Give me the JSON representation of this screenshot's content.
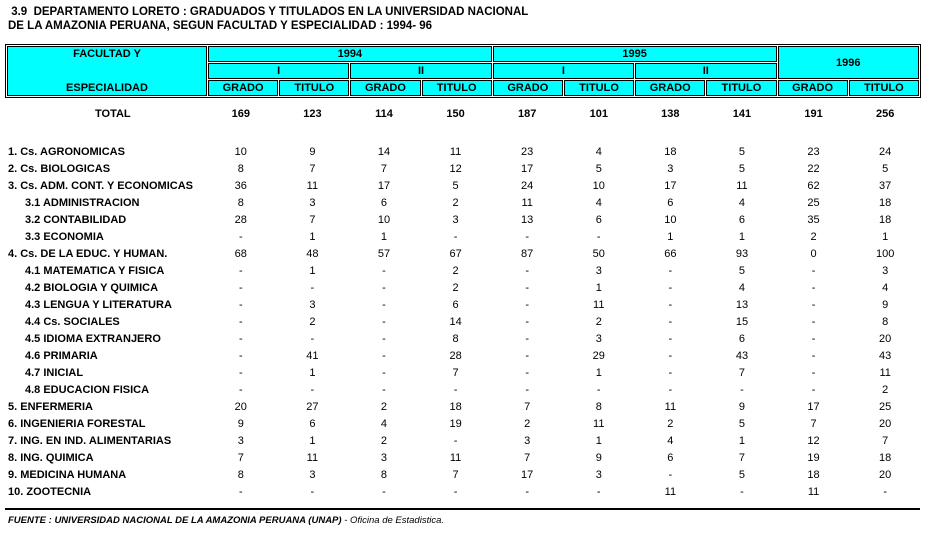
{
  "title": {
    "line1": " 3.9  DEPARTAMENTO LORETO : GRADUADOS Y TITULADOS EN LA UNIVERSIDAD NACIONAL",
    "line2": "DE LA AMAZONIA PERUANA, SEGUN FACULTAD Y ESPECIALIDAD : 1994- 96"
  },
  "colors": {
    "header_bg": "#00FFFF",
    "border": "#000000"
  },
  "table": {
    "header": {
      "col1_top": "FACULTAD  Y",
      "col1_bottom": "ESPECIALIDAD",
      "year_1994": "1994",
      "year_1995": "1995",
      "year_1996": "1996",
      "sem_I": "I",
      "sem_II": "II",
      "grado": "GRADO",
      "titulo": "TITULO"
    },
    "column_keys": [
      "1994-I-GRADO",
      "1994-I-TITULO",
      "1994-II-GRADO",
      "1994-II-TITULO",
      "1995-I-GRADO",
      "1995-I-TITULO",
      "1995-II-GRADO",
      "1995-II-TITULO",
      "1996-GRADO",
      "1996-TITULO"
    ],
    "total_row": {
      "label": "TOTAL",
      "values": [
        "169",
        "123",
        "114",
        "150",
        "187",
        "101",
        "138",
        "141",
        "191",
        "256"
      ]
    },
    "rows": [
      {
        "label": "1. Cs. AGRONOMICAS",
        "indent": false,
        "values": [
          "10",
          "9",
          "14",
          "11",
          "23",
          "4",
          "18",
          "5",
          "23",
          "24"
        ]
      },
      {
        "label": "2. Cs. BIOLOGICAS",
        "indent": false,
        "values": [
          "8",
          "7",
          "7",
          "12",
          "17",
          "5",
          "3",
          "5",
          "22",
          "5"
        ]
      },
      {
        "label": "3. Cs. ADM. CONT. Y ECONOMICAS",
        "indent": false,
        "values": [
          "36",
          "11",
          "17",
          "5",
          "24",
          "10",
          "17",
          "11",
          "62",
          "37"
        ]
      },
      {
        "label": "3.1 ADMINISTRACION",
        "indent": true,
        "values": [
          "8",
          "3",
          "6",
          "2",
          "11",
          "4",
          "6",
          "4",
          "25",
          "18"
        ]
      },
      {
        "label": "3.2 CONTABILIDAD",
        "indent": true,
        "values": [
          "28",
          "7",
          "10",
          "3",
          "13",
          "6",
          "10",
          "6",
          "35",
          "18"
        ]
      },
      {
        "label": "3.3 ECONOMIA",
        "indent": true,
        "values": [
          "-",
          "1",
          "1",
          "-",
          "-",
          "-",
          "1",
          "1",
          "2",
          "1"
        ]
      },
      {
        "label": "4. Cs. DE LA EDUC. Y HUMAN.",
        "indent": false,
        "values": [
          "68",
          "48",
          "57",
          "67",
          "87",
          "50",
          "66",
          "93",
          "0",
          "100"
        ]
      },
      {
        "label": "4.1 MATEMATICA Y FISICA",
        "indent": true,
        "values": [
          "-",
          "1",
          "-",
          "2",
          "-",
          "3",
          "-",
          "5",
          "-",
          "3"
        ]
      },
      {
        "label": "4.2 BIOLOGIA Y QUIMICA",
        "indent": true,
        "values": [
          "-",
          "-",
          "-",
          "2",
          "-",
          "1",
          "-",
          "4",
          "-",
          "4"
        ]
      },
      {
        "label": "4.3 LENGUA Y LITERATURA",
        "indent": true,
        "values": [
          "-",
          "3",
          "-",
          "6",
          "-",
          "11",
          "-",
          "13",
          "-",
          "9"
        ]
      },
      {
        "label": "4.4 Cs. SOCIALES",
        "indent": true,
        "values": [
          "-",
          "2",
          "-",
          "14",
          "-",
          "2",
          "-",
          "15",
          "-",
          "8"
        ]
      },
      {
        "label": "4.5 IDIOMA EXTRANJERO",
        "indent": true,
        "values": [
          "-",
          "-",
          "-",
          "8",
          "-",
          "3",
          "-",
          "6",
          "-",
          "20"
        ]
      },
      {
        "label": "4.6 PRIMARIA",
        "indent": true,
        "values": [
          "-",
          "41",
          "-",
          "28",
          "-",
          "29",
          "-",
          "43",
          "-",
          "43"
        ]
      },
      {
        "label": "4.7 INICIAL",
        "indent": true,
        "values": [
          "-",
          "1",
          "-",
          "7",
          "-",
          "1",
          "-",
          "7",
          "-",
          "11"
        ]
      },
      {
        "label": "4.8 EDUCACION FISICA",
        "indent": true,
        "values": [
          "-",
          "-",
          "-",
          "-",
          "-",
          "-",
          "-",
          "-",
          "-",
          "2"
        ]
      },
      {
        "label": "5. ENFERMERIA",
        "indent": false,
        "values": [
          "20",
          "27",
          "2",
          "18",
          "7",
          "8",
          "11",
          "9",
          "17",
          "25"
        ]
      },
      {
        "label": "6. INGENIERIA FORESTAL",
        "indent": false,
        "values": [
          "9",
          "6",
          "4",
          "19",
          "2",
          "11",
          "2",
          "5",
          "7",
          "20"
        ]
      },
      {
        "label": "7. ING. EN IND. ALIMENTARIAS",
        "indent": false,
        "values": [
          "3",
          "1",
          "2",
          "-",
          "3",
          "1",
          "4",
          "1",
          "12",
          "7"
        ]
      },
      {
        "label": "8. ING. QUIMICA",
        "indent": false,
        "values": [
          "7",
          "11",
          "3",
          "11",
          "7",
          "9",
          "6",
          "7",
          "19",
          "18"
        ]
      },
      {
        "label": "9. MEDICINA HUMANA",
        "indent": false,
        "values": [
          "8",
          "3",
          "8",
          "7",
          "17",
          "3",
          "-",
          "5",
          "18",
          "20"
        ]
      },
      {
        "label": "10. ZOOTECNIA",
        "indent": false,
        "values": [
          "-",
          "-",
          "-",
          "-",
          "-",
          "-",
          "11",
          "-",
          "11",
          "-"
        ]
      }
    ]
  },
  "footer": {
    "source_main": "FUENTE : UNIVERSIDAD NACIONAL DE LA AMAZONIA PERUANA (UNAP)",
    "source_rest": " - Oficina de Estadistica."
  }
}
